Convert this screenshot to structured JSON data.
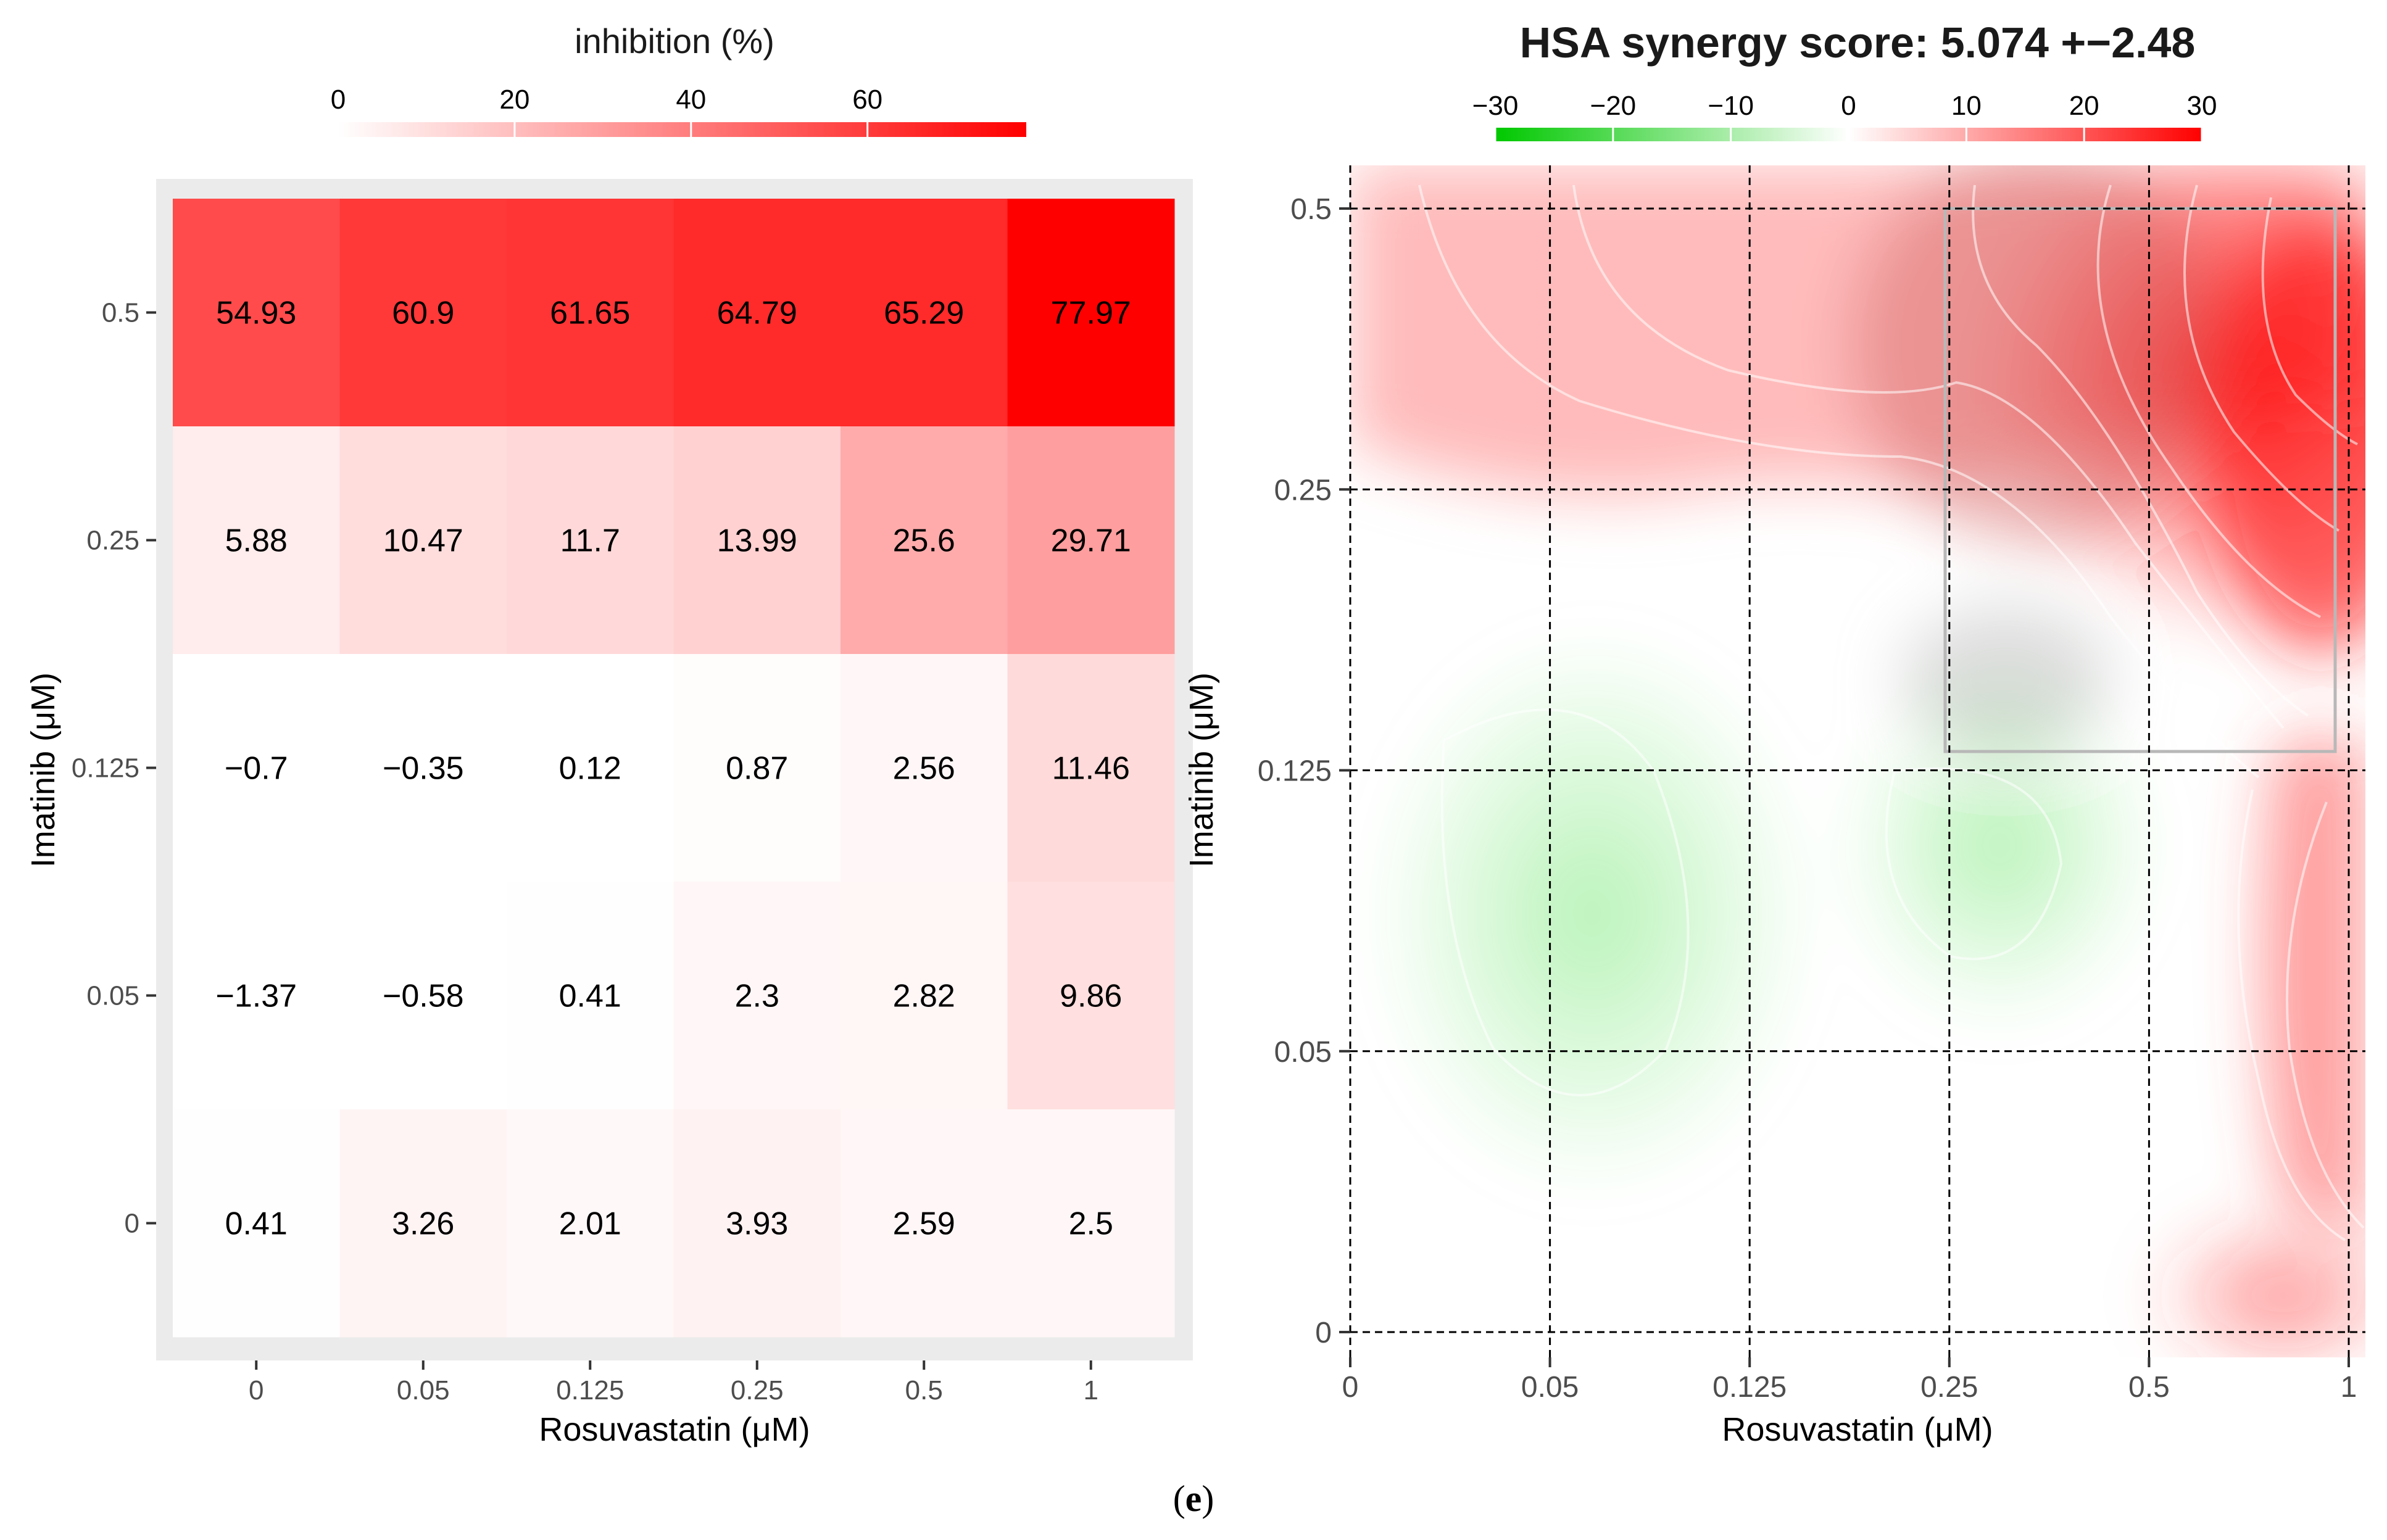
{
  "caption": {
    "open": "(",
    "letter": "e",
    "close": ")"
  },
  "chart_data": [
    {
      "type": "heatmap",
      "title": "inhibition (%)",
      "legend_ticks": [
        0,
        20,
        40,
        60
      ],
      "legend_range": [
        0,
        78
      ],
      "colors": {
        "low": "#ffffff",
        "high": "#ff0000",
        "panel": "#ebebeb"
      },
      "xlabel": "Rosuvastatin (μM)",
      "ylabel": "Imatinib (μM)",
      "x_ticks": [
        "0",
        "0.05",
        "0.125",
        "0.25",
        "0.5",
        "1"
      ],
      "y_ticks": [
        "0.5",
        "0.25",
        "0.125",
        "0.05",
        "0"
      ],
      "values": [
        [
          "54.93",
          "60.9",
          "61.65",
          "64.79",
          "65.29",
          "77.97"
        ],
        [
          "5.88",
          "10.47",
          "11.7",
          "13.99",
          "25.6",
          "29.71"
        ],
        [
          "−0.7",
          "−0.35",
          "0.12",
          "0.87",
          "2.56",
          "11.46"
        ],
        [
          "−1.37",
          "−0.58",
          "0.41",
          "2.3",
          "2.82",
          "9.86"
        ],
        [
          "0.41",
          "3.26",
          "2.01",
          "3.93",
          "2.59",
          "2.5"
        ]
      ]
    },
    {
      "type": "heatmap",
      "title": "HSA synergy score: 5.074 +−2.48",
      "legend_ticks": [
        "−30",
        "−20",
        "−10",
        "0",
        "10",
        "20",
        "30"
      ],
      "legend_range": [
        -30,
        30
      ],
      "colors": {
        "low": "#00c800",
        "mid": "#ffffff",
        "high": "#ff0000"
      },
      "xlabel": "Rosuvastatin (μM)",
      "ylabel": "Imatinib (μM)",
      "x_ticks": [
        "0",
        "0.05",
        "0.125",
        "0.25",
        "0.5",
        "1"
      ],
      "y_ticks": [
        "0.5",
        "0.25",
        "0.125",
        "0.05",
        "0"
      ],
      "surface_features": [
        {
          "x_index": 0.7,
          "y_index": 1.0,
          "synergy": -8
        },
        {
          "x_index": 3.2,
          "y_index": 1.5,
          "synergy": -7
        },
        {
          "x_index": 5.0,
          "y_index": 3.6,
          "synergy": 30
        },
        {
          "x_index": 4.0,
          "y_index": 3.8,
          "synergy": 22
        },
        {
          "x_index": 3.0,
          "y_index": 3.9,
          "synergy": 14
        },
        {
          "x_index": 1.0,
          "y_index": 4.0,
          "synergy": 10
        },
        {
          "x_index": 5.0,
          "y_index": 1.5,
          "synergy": 15
        },
        {
          "x_index": 2.0,
          "y_index": 3.2,
          "synergy": 8
        }
      ],
      "highlight_box": {
        "x_from": "0.25",
        "x_to": "1",
        "y_from": "0.125",
        "y_to": "0.5"
      }
    }
  ]
}
